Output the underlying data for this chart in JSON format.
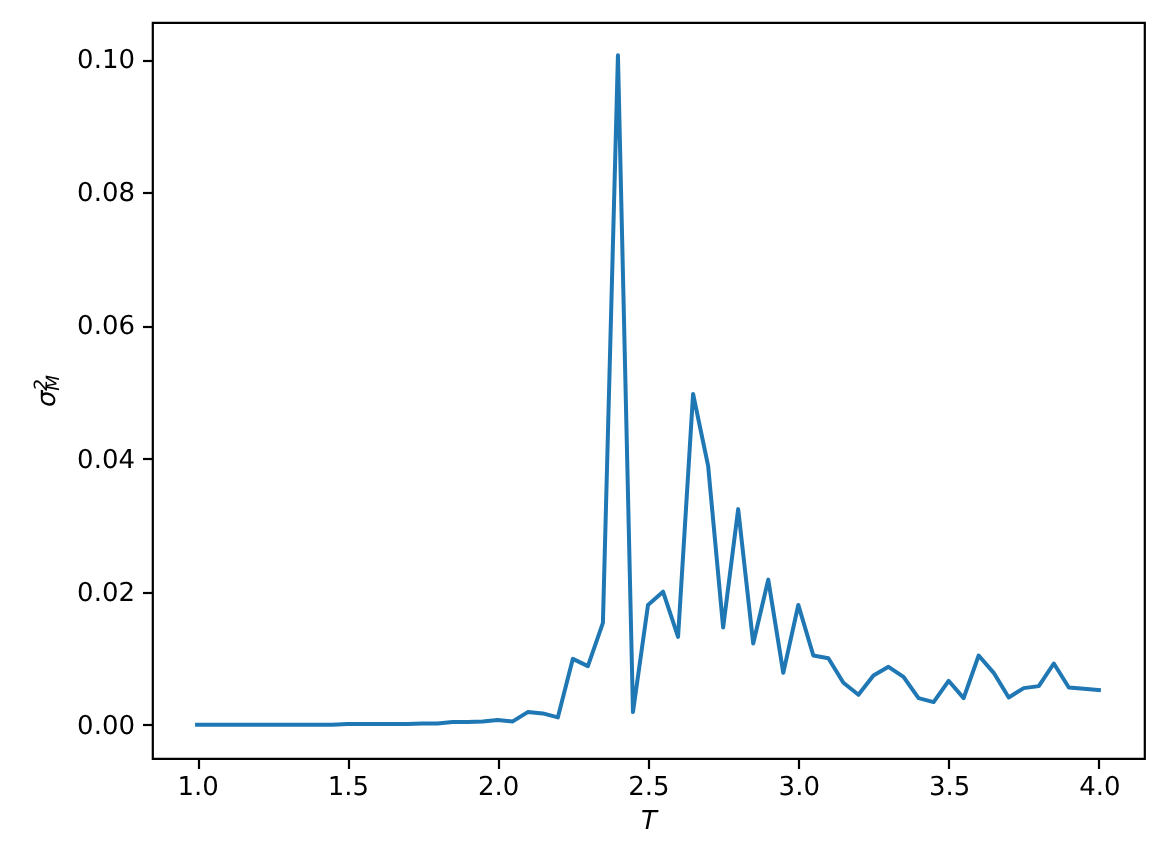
{
  "chart_data": {
    "type": "line",
    "xlabel": "T",
    "ylabel": "σ$_{M}$$^{2}$",
    "line_style": "solid",
    "x": [
      1.0,
      1.05,
      1.1,
      1.15,
      1.2,
      1.25,
      1.3,
      1.35,
      1.4,
      1.45,
      1.5,
      1.55,
      1.6,
      1.65,
      1.7,
      1.75,
      1.8,
      1.85,
      1.9,
      1.95,
      2.0,
      2.05,
      2.1,
      2.15,
      2.2,
      2.25,
      2.3,
      2.35,
      2.4,
      2.45,
      2.5,
      2.55,
      2.6,
      2.65,
      2.7,
      2.75,
      2.8,
      2.85,
      2.9,
      2.95,
      3.0,
      3.05,
      3.1,
      3.15,
      3.2,
      3.25,
      3.3,
      3.35,
      3.4,
      3.45,
      3.5,
      3.55,
      3.6,
      3.65,
      3.7,
      3.75,
      3.8,
      3.85,
      3.9,
      3.95,
      4.0
    ],
    "series": [
      {
        "color": "#1f77b4",
        "values": [
          0,
          0,
          0,
          0,
          0,
          0,
          0,
          0,
          0,
          0,
          0.0001,
          0.0001,
          0.0001,
          0.0001,
          0.0001,
          0.0002,
          0.0002,
          0.0004,
          0.0004,
          0.0005,
          0.0007,
          0.0005,
          0.0019,
          0.0017,
          0.0011,
          0.0099,
          0.0088,
          0.0153,
          0.1006,
          0.0019,
          0.018,
          0.02,
          0.0132,
          0.0497,
          0.0389,
          0.0146,
          0.0324,
          0.0122,
          0.0218,
          0.0078,
          0.018,
          0.0104,
          0.01,
          0.0063,
          0.0045,
          0.0074,
          0.0087,
          0.0072,
          0.004,
          0.0034,
          0.0066,
          0.004,
          0.0104,
          0.0078,
          0.0041,
          0.0055,
          0.0058,
          0.0092,
          0.0056,
          0.0054,
          0.0052
        ]
      }
    ],
    "xlim": [
      0.85,
      4.15
    ],
    "xticks": [
      {
        "value": 1,
        "label": "1.0"
      },
      1.5,
      {
        "value": 2,
        "label": "2.0"
      },
      2.5,
      {
        "value": 3,
        "label": "3.0"
      },
      3.5,
      {
        "value": 4,
        "label": "4.0"
      }
    ],
    "ylim": [
      -0.005,
      0.1056
    ],
    "yticks": [
      {
        "value": 0,
        "label": "0.00"
      },
      0.02,
      0.04,
      0.06,
      0.08,
      {
        "value": 0.1,
        "label": "0.10"
      }
    ]
  }
}
